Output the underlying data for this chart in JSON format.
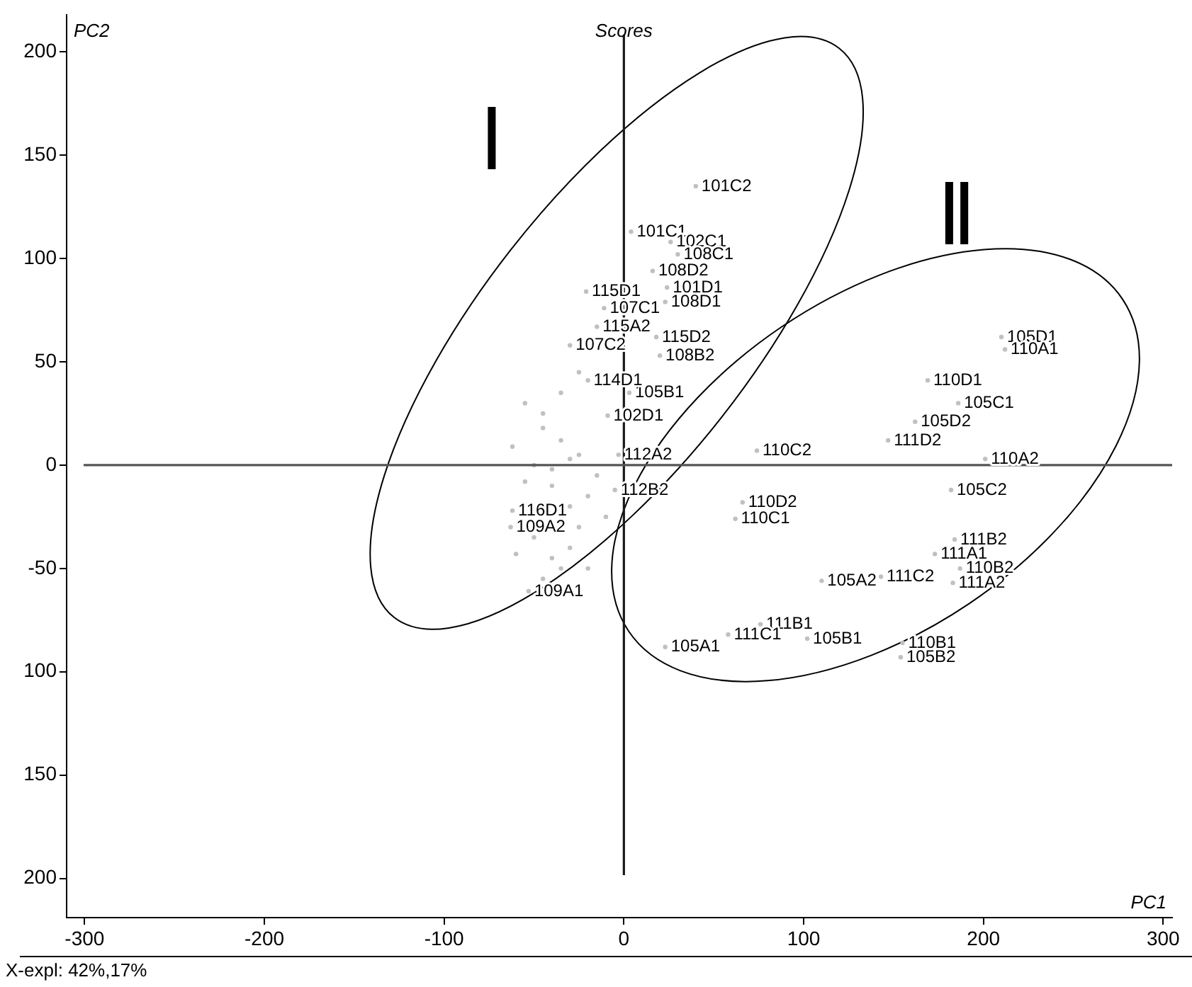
{
  "chart_data": {
    "type": "scatter",
    "title": "Scores",
    "xlabel": "PC1",
    "ylabel": "PC2",
    "xlim": [
      -310,
      305
    ],
    "ylim": [
      -219,
      218
    ],
    "xticks": [
      -300,
      -200,
      -100,
      0,
      100,
      200,
      300
    ],
    "yticks": [
      200,
      150,
      100,
      50,
      0,
      -50,
      {
        "value": -100,
        "label": "100"
      },
      {
        "value": -150,
        "label": "150"
      },
      {
        "value": -200,
        "label": "200"
      }
    ],
    "grid": false,
    "legend": false,
    "marker": "circle",
    "series": [
      {
        "color": "#c0c0c0",
        "x": [
          210,
          212,
          169,
          186,
          162,
          147,
          74,
          201,
          182,
          66,
          62,
          184,
          173,
          187,
          183,
          143,
          110,
          76,
          58,
          102,
          23,
          155,
          154,
          40,
          4,
          26,
          30,
          16,
          24,
          -21,
          -11,
          23,
          -15,
          -30,
          18,
          20,
          -9,
          3,
          -20,
          -3,
          -5,
          -62,
          -63,
          -53,
          -62,
          -60,
          -45,
          -35,
          -25,
          -15,
          -50,
          -40,
          -30,
          -20,
          -10,
          -55,
          -45,
          -35,
          -25,
          -50,
          -40,
          -30,
          -20,
          -45,
          -35,
          -25,
          -55,
          -40,
          -30
        ],
        "values": [
          62,
          56,
          41,
          30,
          21,
          12,
          7,
          3,
          -12,
          -18,
          -26,
          -36,
          -43,
          -50,
          -57,
          -54,
          -56,
          -77,
          -82,
          -84,
          -88,
          -86,
          -93,
          135,
          113,
          108,
          102,
          94,
          86,
          84,
          76,
          79,
          67,
          58,
          62,
          53,
          24,
          35,
          41,
          5,
          -12,
          -22,
          -30,
          -61,
          9,
          -43,
          18,
          12,
          5,
          -5,
          0,
          -10,
          -20,
          -15,
          -25,
          30,
          25,
          35,
          45,
          -35,
          -45,
          -40,
          -50,
          -55,
          -50,
          -30,
          -8,
          -2,
          3
        ]
      }
    ],
    "ref_lines": [
      {
        "axis": "x",
        "value": 0,
        "color": "#1a1a1a"
      },
      {
        "axis": "y",
        "value": 0,
        "color": "#555555"
      }
    ],
    "annotations": [
      {
        "text": "105D1",
        "x": 210,
        "y": 62
      },
      {
        "text": "110A1",
        "x": 212,
        "y": 56
      },
      {
        "text": "110D1",
        "x": 169,
        "y": 41
      },
      {
        "text": "105C1",
        "x": 186,
        "y": 30
      },
      {
        "text": "105D2",
        "x": 162,
        "y": 21
      },
      {
        "text": "111D2",
        "x": 147,
        "y": 12
      },
      {
        "text": "110C2",
        "x": 74,
        "y": 7
      },
      {
        "text": "110A2",
        "x": 201,
        "y": 3
      },
      {
        "text": "105C2",
        "x": 182,
        "y": -12
      },
      {
        "text": "110D2",
        "x": 66,
        "y": -18
      },
      {
        "text": "110C1",
        "x": 62,
        "y": -26
      },
      {
        "text": "111B2",
        "x": 184,
        "y": -36
      },
      {
        "text": "111A1",
        "x": 173,
        "y": -43
      },
      {
        "text": "110B2",
        "x": 187,
        "y": -50
      },
      {
        "text": "111A2",
        "x": 183,
        "y": -57
      },
      {
        "text": "111C2",
        "x": 143,
        "y": -54
      },
      {
        "text": "105A2",
        "x": 110,
        "y": -56
      },
      {
        "text": "111B1",
        "x": 76,
        "y": -77
      },
      {
        "text": "111C1",
        "x": 58,
        "y": -82
      },
      {
        "text": "105B1",
        "x": 102,
        "y": -84
      },
      {
        "text": "105A1",
        "x": 23,
        "y": -88
      },
      {
        "text": "110B1",
        "x": 155,
        "y": -86
      },
      {
        "text": "105B2",
        "x": 154,
        "y": -93
      },
      {
        "text": "101C2",
        "x": 40,
        "y": 135
      },
      {
        "text": "101C1",
        "x": 4,
        "y": 113
      },
      {
        "text": "102C1",
        "x": 26,
        "y": 108
      },
      {
        "text": "108C1",
        "x": 30,
        "y": 102
      },
      {
        "text": "108D2",
        "x": 16,
        "y": 94
      },
      {
        "text": "101D1",
        "x": 24,
        "y": 86
      },
      {
        "text": "115D1",
        "x": -21,
        "y": 84
      },
      {
        "text": "107C1",
        "x": -11,
        "y": 76
      },
      {
        "text": "108D1",
        "x": 23,
        "y": 79
      },
      {
        "text": "115A2",
        "x": -15,
        "y": 67
      },
      {
        "text": "107C2",
        "x": -30,
        "y": 58
      },
      {
        "text": "115D2",
        "x": 18,
        "y": 62
      },
      {
        "text": "108B2",
        "x": 20,
        "y": 53
      },
      {
        "text": "102D1",
        "x": -9,
        "y": 24
      },
      {
        "text": "105B1",
        "x": 3,
        "y": 35
      },
      {
        "text": "114D1",
        "x": -20,
        "y": 41
      },
      {
        "text": "112A2",
        "x": -3,
        "y": 5
      },
      {
        "text": "112B2",
        "x": -5,
        "y": -12
      },
      {
        "text": "116D1",
        "x": -62,
        "y": -22
      },
      {
        "text": "109A2",
        "x": -63,
        "y": -30
      },
      {
        "text": "109A1",
        "x": -53,
        "y": -61
      },
      "I",
      "II",
      "X-expl: 42%,17%"
    ]
  }
}
